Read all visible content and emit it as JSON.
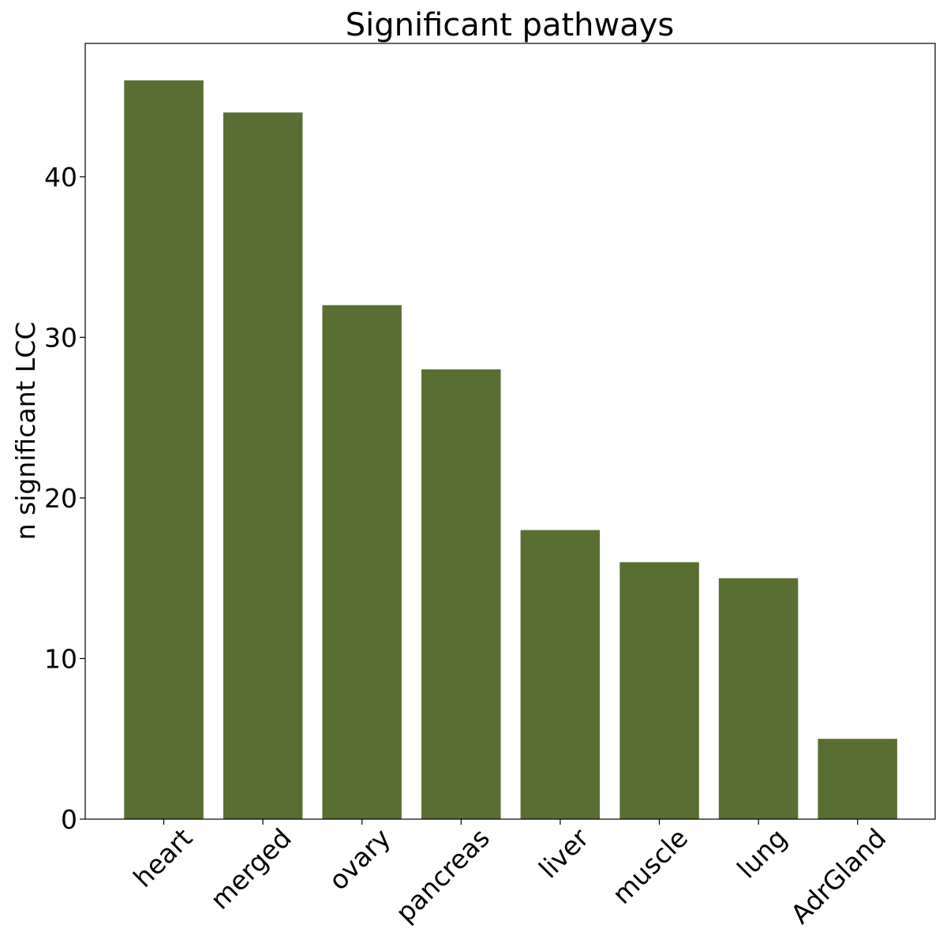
{
  "chart_data": {
    "type": "bar",
    "title": "Significant pathways",
    "xlabel": "",
    "ylabel": "n significant LCC",
    "categories": [
      "heart",
      "merged",
      "ovary",
      "pancreas",
      "liver",
      "muscle",
      "lung",
      "AdrGland"
    ],
    "values": [
      46,
      44,
      32,
      28,
      18,
      16,
      15,
      5
    ],
    "ylim": [
      0,
      48.3
    ],
    "yticks": [
      0,
      10,
      20,
      30,
      40
    ],
    "bar_color": "#596e33",
    "grid": false,
    "legend": "none"
  }
}
